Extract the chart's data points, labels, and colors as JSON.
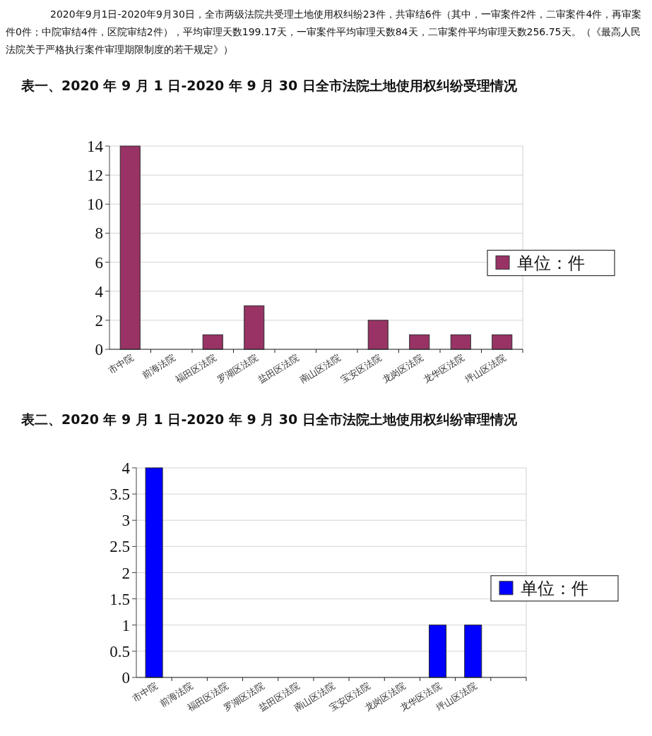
{
  "chart_data": [
    {
      "type": "bar",
      "title": "表一、2020 年 9 月 1 日-2020 年 9 月 30 日全市法院土地使用权纠纷受理情况",
      "annotations": [
        "2020年9月1日-2020年9月30日，全市两级法院共受理土地使用权纠纷23件，共审结6件（其中，一审案件2件，二审案件4件，再审案件0件；中院审结4件，区院审结2件），平均审理天数199.17天，一审案件平均审理天数84天，二审案件平均审理天数256.75天。（《最高人民法院关于严格执行案件审理期限制度的若干规定》）"
      ],
      "categories": [
        "市中院",
        "前海法院",
        "福田区法院",
        "罗湖区法院",
        "盐田区法院",
        "南山区法院",
        "宝安区法院",
        "龙岗区法院",
        "龙华区法院",
        "坪山区法院"
      ],
      "series": [
        {
          "name": "单位：件",
          "color": "#993366",
          "values": [
            14,
            0,
            1,
            3,
            0,
            0,
            2,
            1,
            1,
            1
          ]
        }
      ],
      "ylim": [
        0,
        14
      ],
      "yticks": [
        0,
        2,
        4,
        6,
        8,
        10,
        12,
        14
      ],
      "grid": "y",
      "legend": "right"
    },
    {
      "type": "bar",
      "title": "表二、2020 年 9 月 1 日-2020 年 9 月 30 日全市法院土地使用权纠纷审理情况",
      "categories": [
        "市中院",
        "前海法院",
        "福田区法院",
        "罗湖区法院",
        "盐田区法院",
        "南山区法院",
        "宝安区法院",
        "龙岗区法院",
        "龙华区法院",
        "坪山区法院",
        null
      ],
      "series": [
        {
          "name": "单位：件",
          "color": "#0000ff",
          "values": [
            4,
            0,
            0,
            0,
            0,
            0,
            0,
            0,
            1,
            1,
            null
          ]
        }
      ],
      "ylim": [
        0,
        4
      ],
      "yticks": [
        0,
        0.5,
        1,
        1.5,
        2,
        2.5,
        3,
        3.5,
        4
      ],
      "grid": "y",
      "legend": "right"
    }
  ]
}
